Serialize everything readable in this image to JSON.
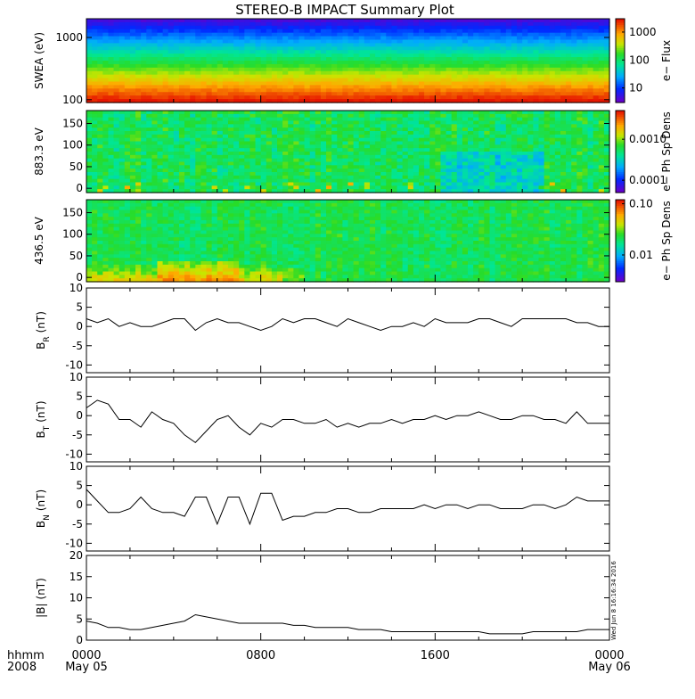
{
  "title": "STEREO-B IMPACT Summary Plot",
  "time_axis": {
    "format_label": "hhmm",
    "year_label": "2008",
    "ticks": [
      {
        "hours": 0,
        "label": "0000",
        "date": "May 05"
      },
      {
        "hours": 8,
        "label": "0800",
        "date": ""
      },
      {
        "hours": 16,
        "label": "1600",
        "date": ""
      },
      {
        "hours": 24,
        "label": "0000",
        "date": "May 06"
      }
    ],
    "range_hours": [
      0,
      24
    ]
  },
  "timestamp": "Wed Jun  8 16:16:34 2016",
  "spectrograms": [
    {
      "ylabel": "SWEA (eV)",
      "ylog": true,
      "ylim": [
        90,
        2000
      ],
      "yticks": [
        {
          "v": 100,
          "label": "100"
        },
        {
          "v": 1000,
          "label": "1000"
        }
      ],
      "colorbar": {
        "label": "e− Flux",
        "log": true,
        "range": [
          3,
          3000
        ],
        "ticks": [
          {
            "v": 10,
            "label": "10"
          },
          {
            "v": 100,
            "label": "100"
          },
          {
            "v": 1000,
            "label": "1000"
          }
        ]
      },
      "pattern": "energy_gradient"
    },
    {
      "ylabel": "883.3 eV",
      "ylog": false,
      "ylim": [
        -10,
        180
      ],
      "yticks": [
        {
          "v": 0,
          "label": "0"
        },
        {
          "v": 50,
          "label": "50"
        },
        {
          "v": 100,
          "label": "100"
        },
        {
          "v": 150,
          "label": "150"
        }
      ],
      "colorbar": {
        "label": "e− Ph Sp Dens",
        "log": true,
        "range": [
          5e-05,
          0.005
        ],
        "ticks": [
          {
            "v": 0.0001,
            "label": "0.0001"
          },
          {
            "v": 0.001,
            "label": "0.0010"
          }
        ]
      },
      "pattern": "pitch_angle_mid"
    },
    {
      "ylabel": "436.5 eV",
      "ylog": false,
      "ylim": [
        -10,
        180
      ],
      "yticks": [
        {
          "v": 0,
          "label": "0"
        },
        {
          "v": 50,
          "label": "50"
        },
        {
          "v": 100,
          "label": "100"
        },
        {
          "v": 150,
          "label": "150"
        }
      ],
      "colorbar": {
        "label": "e− Ph Sp Dens",
        "log": true,
        "range": [
          0.003,
          0.12
        ],
        "ticks": [
          {
            "v": 0.01,
            "label": "0.01"
          },
          {
            "v": 0.1,
            "label": "0.10"
          }
        ]
      },
      "pattern": "pitch_angle_low"
    }
  ],
  "chart_data": [
    {
      "type": "line",
      "name": "BR",
      "ylabel_main": "B",
      "ylabel_sub": "R",
      "ylabel_unit": "(nT)",
      "ylim": [
        -12,
        10
      ],
      "yticks": [
        -10,
        -5,
        0,
        5,
        10
      ],
      "x": [
        0,
        0.5,
        1,
        1.5,
        2,
        2.5,
        3,
        3.5,
        4,
        4.5,
        5,
        5.5,
        6,
        6.5,
        7,
        7.5,
        8,
        8.5,
        9,
        9.5,
        10,
        10.5,
        11,
        11.5,
        12,
        12.5,
        13,
        13.5,
        14,
        14.5,
        15,
        15.5,
        16,
        16.5,
        17,
        17.5,
        18,
        18.5,
        19,
        19.5,
        20,
        20.5,
        21,
        21.5,
        22,
        22.5,
        23,
        23.5,
        24
      ],
      "y": [
        2,
        1,
        2,
        0,
        1,
        0,
        0,
        1,
        2,
        2,
        -1,
        1,
        2,
        1,
        1,
        0,
        -1,
        0,
        2,
        1,
        2,
        2,
        1,
        0,
        2,
        1,
        0,
        -1,
        0,
        0,
        1,
        0,
        2,
        1,
        1,
        1,
        2,
        2,
        1,
        0,
        2,
        2,
        2,
        2,
        2,
        1,
        1,
        0,
        0
      ]
    },
    {
      "type": "line",
      "name": "BT",
      "ylabel_main": "B",
      "ylabel_sub": "T",
      "ylabel_unit": "(nT)",
      "ylim": [
        -12,
        10
      ],
      "yticks": [
        -10,
        -5,
        0,
        5,
        10
      ],
      "x": [
        0,
        0.5,
        1,
        1.5,
        2,
        2.5,
        3,
        3.5,
        4,
        4.5,
        5,
        5.5,
        6,
        6.5,
        7,
        7.5,
        8,
        8.5,
        9,
        9.5,
        10,
        10.5,
        11,
        11.5,
        12,
        12.5,
        13,
        13.5,
        14,
        14.5,
        15,
        15.5,
        16,
        16.5,
        17,
        17.5,
        18,
        18.5,
        19,
        19.5,
        20,
        20.5,
        21,
        21.5,
        22,
        22.5,
        23,
        23.5,
        24
      ],
      "y": [
        2,
        4,
        3,
        -1,
        -1,
        -3,
        1,
        -1,
        -2,
        -5,
        -7,
        -4,
        -1,
        0,
        -3,
        -5,
        -2,
        -3,
        -1,
        -1,
        -2,
        -2,
        -1,
        -3,
        -2,
        -3,
        -2,
        -2,
        -1,
        -2,
        -1,
        -1,
        0,
        -1,
        0,
        0,
        1,
        0,
        -1,
        -1,
        0,
        0,
        -1,
        -1,
        -2,
        1,
        -2,
        -2,
        -2
      ]
    },
    {
      "type": "line",
      "name": "BN",
      "ylabel_main": "B",
      "ylabel_sub": "N",
      "ylabel_unit": "(nT)",
      "ylim": [
        -12,
        10
      ],
      "yticks": [
        -10,
        -5,
        0,
        5,
        10
      ],
      "x": [
        0,
        0.5,
        1,
        1.5,
        2,
        2.5,
        3,
        3.5,
        4,
        4.5,
        5,
        5.5,
        6,
        6.5,
        7,
        7.5,
        8,
        8.5,
        9,
        9.5,
        10,
        10.5,
        11,
        11.5,
        12,
        12.5,
        13,
        13.5,
        14,
        14.5,
        15,
        15.5,
        16,
        16.5,
        17,
        17.5,
        18,
        18.5,
        19,
        19.5,
        20,
        20.5,
        21,
        21.5,
        22,
        22.5,
        23,
        23.5,
        24
      ],
      "y": [
        4,
        1,
        -2,
        -2,
        -1,
        2,
        -1,
        -2,
        -2,
        -3,
        2,
        2,
        -5,
        2,
        2,
        -5,
        3,
        3,
        -4,
        -3,
        -3,
        -2,
        -2,
        -1,
        -1,
        -2,
        -2,
        -1,
        -1,
        -1,
        -1,
        0,
        -1,
        0,
        0,
        -1,
        0,
        0,
        -1,
        -1,
        -1,
        0,
        0,
        -1,
        0,
        2,
        1,
        1,
        1
      ]
    },
    {
      "type": "line",
      "name": "|B|",
      "ylabel_main": "|B|",
      "ylabel_sub": "",
      "ylabel_unit": "(nT)",
      "ylim": [
        0,
        20
      ],
      "yticks": [
        0,
        5,
        10,
        15,
        20
      ],
      "x": [
        0,
        0.5,
        1,
        1.5,
        2,
        2.5,
        3,
        3.5,
        4,
        4.5,
        5,
        5.5,
        6,
        6.5,
        7,
        7.5,
        8,
        8.5,
        9,
        9.5,
        10,
        10.5,
        11,
        11.5,
        12,
        12.5,
        13,
        13.5,
        14,
        14.5,
        15,
        15.5,
        16,
        16.5,
        17,
        17.5,
        18,
        18.5,
        19,
        19.5,
        20,
        20.5,
        21,
        21.5,
        22,
        22.5,
        23,
        23.5,
        24
      ],
      "y": [
        4.5,
        4,
        3,
        3,
        2.5,
        2.5,
        3,
        3.5,
        4,
        4.5,
        6,
        5.5,
        5,
        4.5,
        4,
        4,
        4,
        4,
        4,
        3.5,
        3.5,
        3,
        3,
        3,
        3,
        2.5,
        2.5,
        2.5,
        2,
        2,
        2,
        2,
        2,
        2,
        2,
        2,
        2,
        1.5,
        1.5,
        1.5,
        1.5,
        2,
        2,
        2,
        2,
        2,
        2.5,
        2.5,
        2.5
      ]
    }
  ],
  "colors": {
    "line": "#000000",
    "frame": "#000000",
    "background": "#ffffff"
  }
}
